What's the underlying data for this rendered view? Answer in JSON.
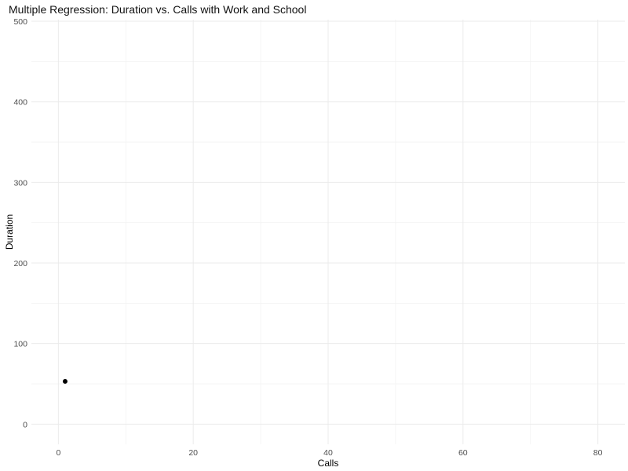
{
  "chart_data": {
    "type": "scatter",
    "title": "Multiple Regression: Duration vs. Calls with Work and School",
    "xlabel": "Calls",
    "ylabel": "Duration",
    "xlim": [
      -4,
      84
    ],
    "ylim": [
      -25,
      502
    ],
    "x_ticks": [
      0,
      20,
      40,
      60,
      80
    ],
    "y_ticks": [
      0,
      100,
      200,
      300,
      400,
      500
    ],
    "grid": true,
    "legend": "none",
    "series": [
      {
        "points": [
          {
            "x": 1,
            "y": 53
          }
        ],
        "color": "#000000"
      }
    ]
  }
}
